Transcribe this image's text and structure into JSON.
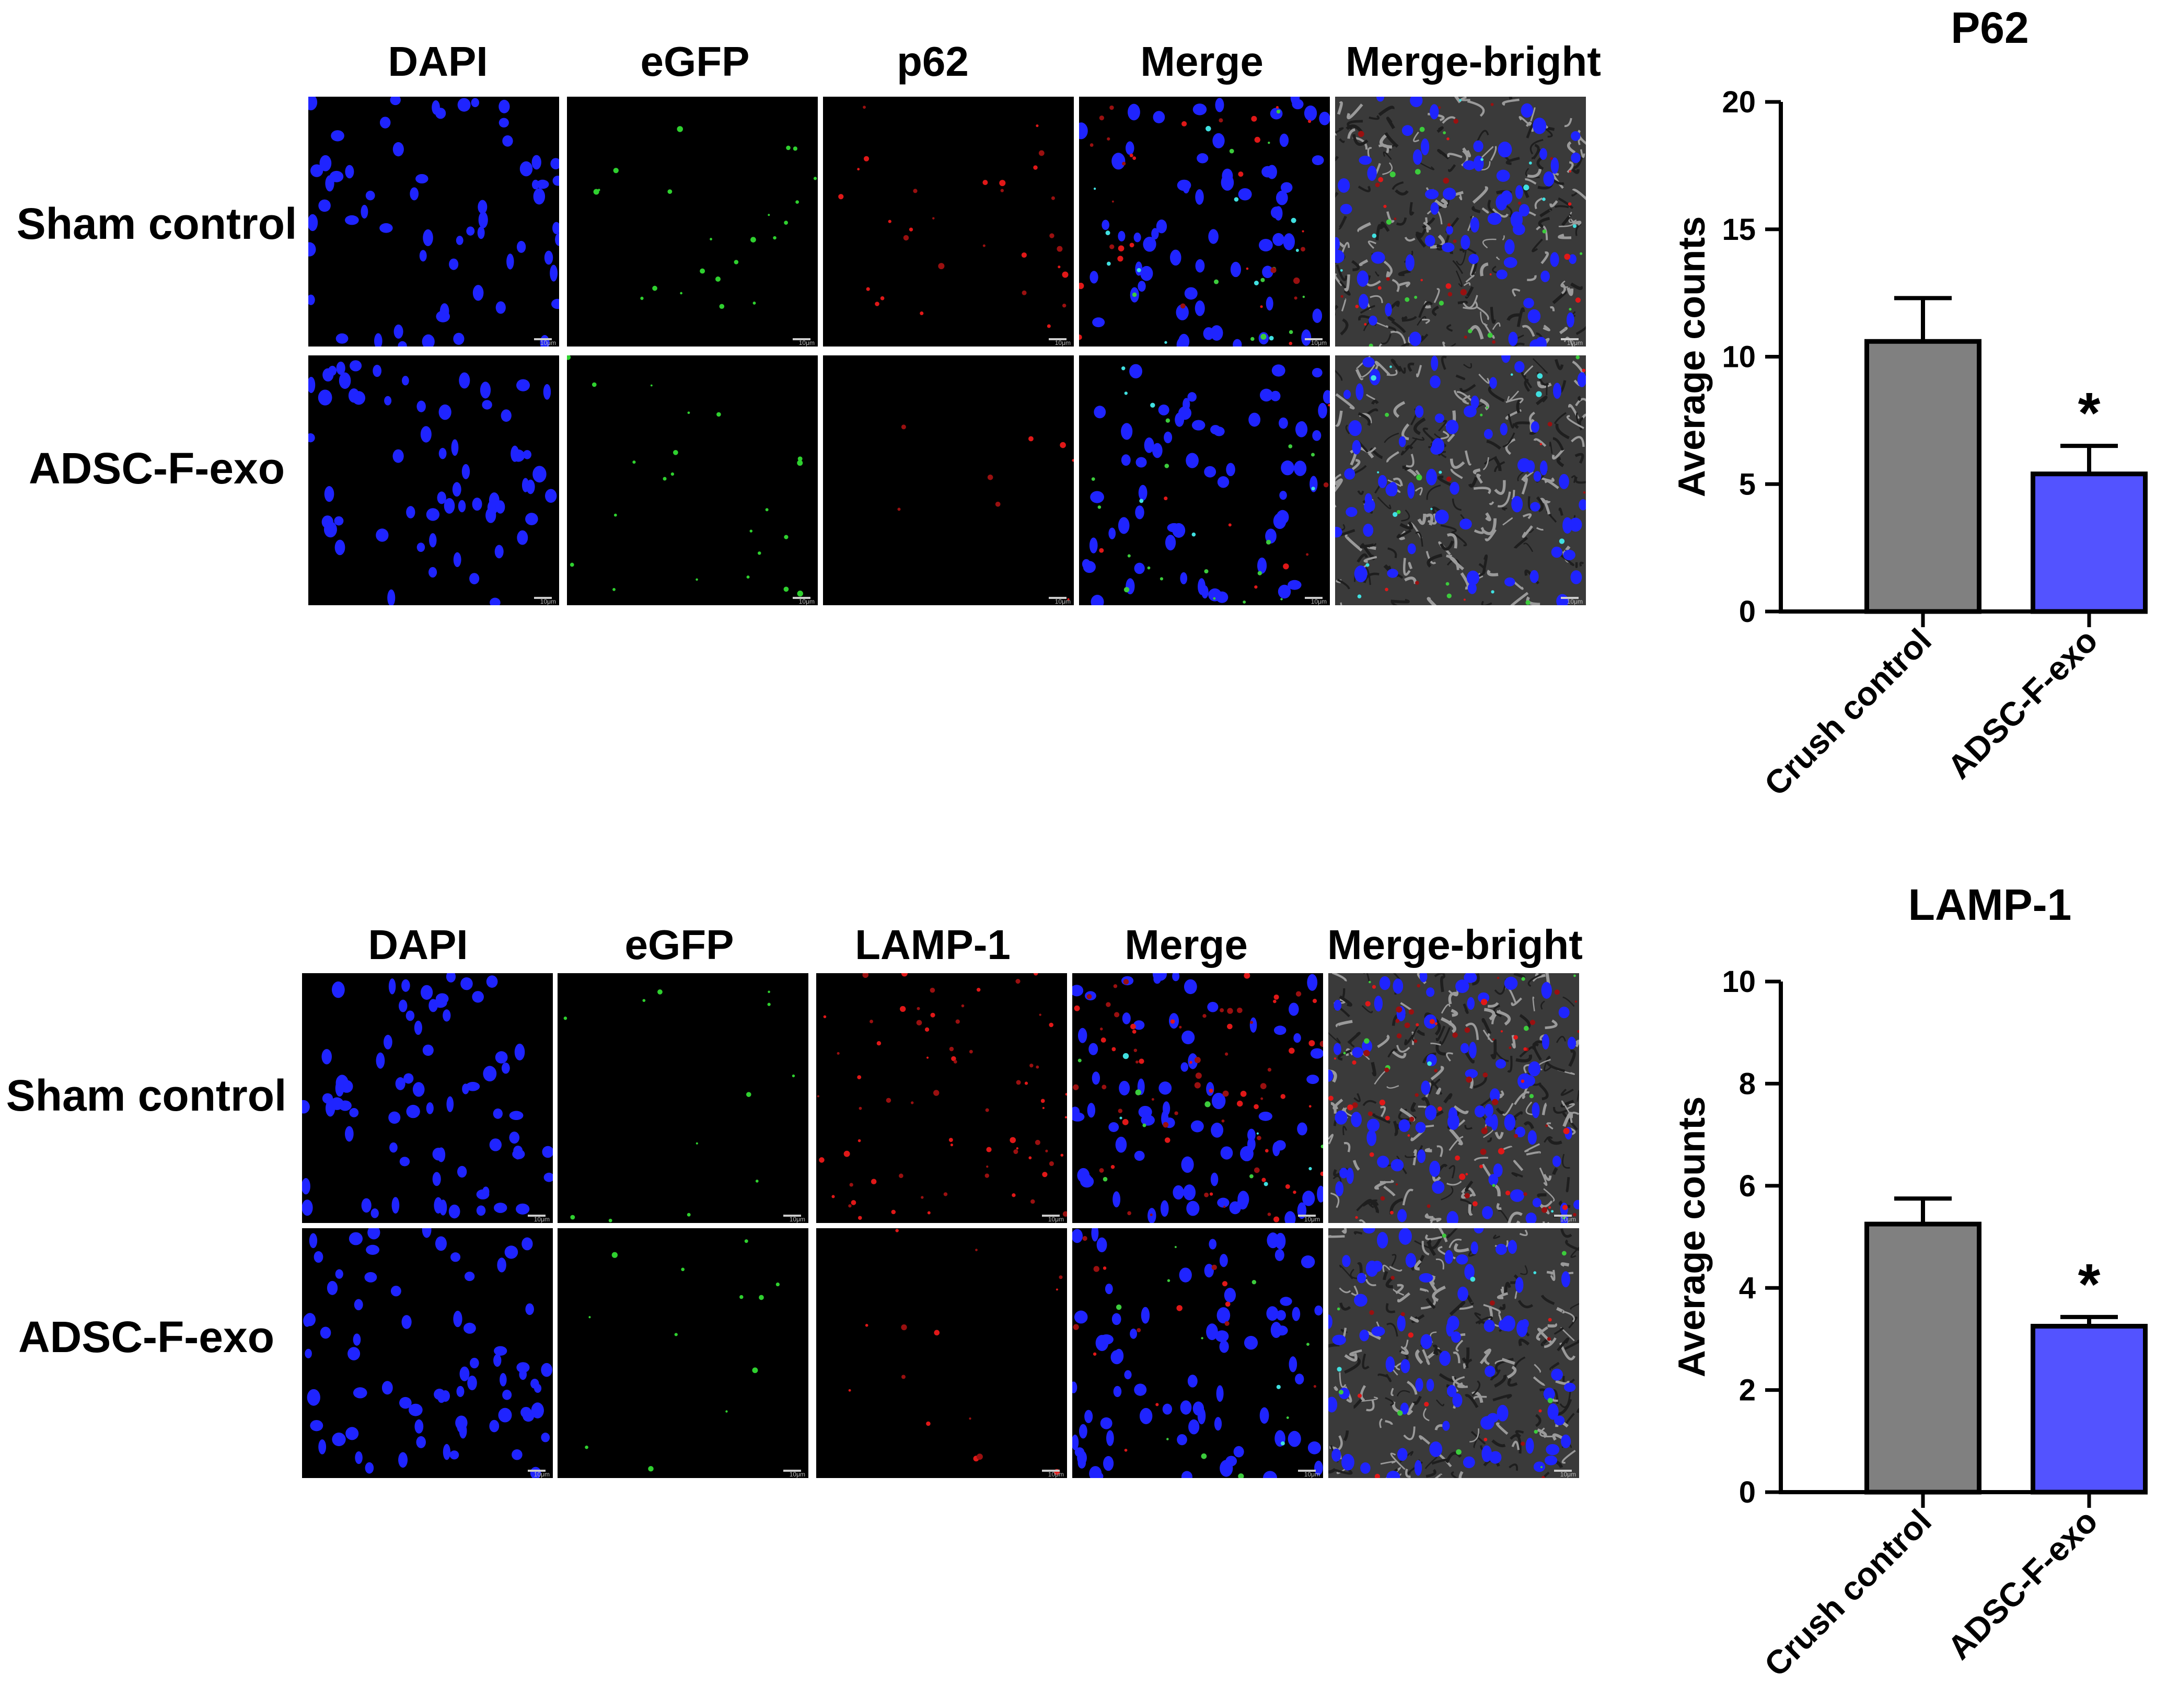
{
  "panels": [
    {
      "name": "p62",
      "columns": [
        "DAPI",
        "eGFP",
        "p62",
        "Merge",
        "Merge-bright"
      ],
      "rows": [
        "Sham control",
        "ADSC-F-exo"
      ]
    },
    {
      "name": "lamp1",
      "columns": [
        "DAPI",
        "eGFP",
        "LAMP-1",
        "Merge",
        "Merge-bright"
      ],
      "rows": [
        "Sham control",
        "ADSC-F-exo"
      ]
    }
  ],
  "scale_bar_label": "10μm",
  "chart_data": [
    {
      "type": "bar",
      "title": "P62",
      "ylabel": "Average counts",
      "categories": [
        "Crush control",
        "ADSC-F-exo"
      ],
      "values": [
        10.6,
        5.4
      ],
      "errors": [
        1.7,
        1.1
      ],
      "ylim": [
        0,
        20
      ],
      "yticks": [
        "0",
        "5",
        "10",
        "15",
        "20"
      ],
      "significance": [
        "",
        "*"
      ],
      "colors": [
        "#808080",
        "#5353ff"
      ]
    },
    {
      "type": "bar",
      "title": "LAMP-1",
      "ylabel": "Average counts",
      "categories": [
        "Crush control",
        "ADSC-F-exo"
      ],
      "values": [
        5.25,
        3.25
      ],
      "errors": [
        0.5,
        0.18
      ],
      "ylim": [
        0,
        10
      ],
      "yticks": [
        "0",
        "2",
        "4",
        "6",
        "8",
        "10"
      ],
      "significance": [
        "",
        "*"
      ],
      "colors": [
        "#808080",
        "#5353ff"
      ]
    }
  ]
}
